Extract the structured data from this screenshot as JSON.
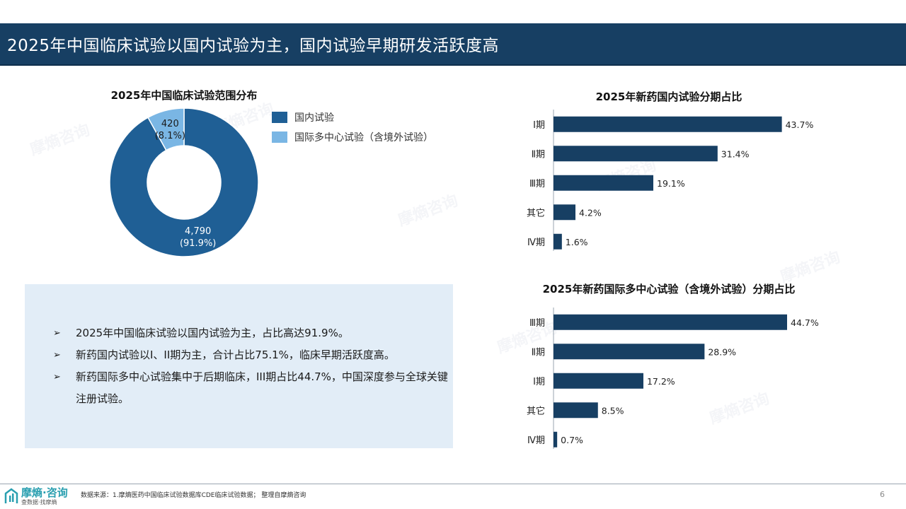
{
  "header": {
    "title": "2025年中国临床试验以国内试验为主，国内试验早期研发活跃度高"
  },
  "watermark": {
    "text": "摩熵咨询"
  },
  "colors": {
    "header_bg": "#173f63",
    "donut_main": "#1f5f95",
    "donut_minor": "#7ab6e4",
    "bar": "#173f63",
    "summary_bg": "#e2edf7"
  },
  "chart_data": [
    {
      "type": "pie",
      "title": "2025年中国临床试验范围分布",
      "hole": true,
      "legend_position": "right",
      "slices": [
        {
          "name": "国内试验",
          "value": 4790,
          "value_label": "4,790",
          "pct_label": "(91.9%)",
          "color": "#1f5f95"
        },
        {
          "name": "国际多中心试验（含境外试验）",
          "value": 420,
          "value_label": "420",
          "pct_label": "(8.1%)",
          "color": "#7ab6e4"
        }
      ]
    },
    {
      "type": "bar",
      "orientation": "horizontal",
      "title": "2025年新药国内试验分期占比",
      "categories": [
        "Ⅰ期",
        "Ⅱ期",
        "Ⅲ期",
        "其它",
        "Ⅳ期"
      ],
      "values": [
        43.7,
        31.4,
        19.1,
        4.2,
        1.6
      ],
      "value_labels": [
        "43.7%",
        "31.4%",
        "19.1%",
        "4.2%",
        "1.6%"
      ],
      "xlim": [
        0,
        50
      ]
    },
    {
      "type": "bar",
      "orientation": "horizontal",
      "title": "2025年新药国际多中心试验（含境外试验）分期占比",
      "categories": [
        "Ⅲ期",
        "Ⅱ期",
        "Ⅰ期",
        "其它",
        "Ⅳ期"
      ],
      "values": [
        44.7,
        28.9,
        17.2,
        8.5,
        0.7
      ],
      "value_labels": [
        "44.7%",
        "28.9%",
        "17.2%",
        "8.5%",
        "0.7%"
      ],
      "xlim": [
        0,
        50
      ]
    }
  ],
  "summary": {
    "bullet_symbol": "➢",
    "items": [
      "2025年中国临床试验以国内试验为主，占比高达91.9%。",
      "新药国内试验以I、II期为主，合计占比75.1%，临床早期活跃度高。",
      "新药国际多中心试验集中于后期临床，III期占比44.7%，中国深度参与全球关键注册试验。"
    ]
  },
  "footer": {
    "logo_text": "摩熵·咨询",
    "logo_sub": "查数据·找摩熵",
    "source": "数据来源：1.摩熵医药中国临床试验数据库CDE临床试验数据； 整理自摩熵咨询",
    "page_number": "6"
  }
}
